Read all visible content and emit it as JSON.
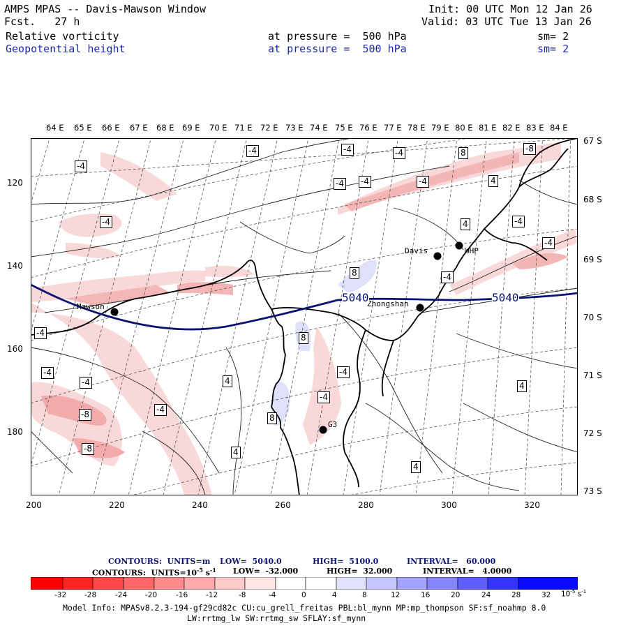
{
  "header": {
    "title": "AMPS MPAS -- Davis-Mawson Window",
    "forecast": "Fcst.   27 h",
    "init": "Init: 00 UTC Mon 12 Jan 26",
    "valid": "Valid: 03 UTC Tue 13 Jan 26",
    "field1": {
      "name": "Relative vorticity",
      "level": "at pressure =  500 hPa",
      "smooth": "sm= 2"
    },
    "field2": {
      "name": "Geopotential height",
      "level": "at pressure =  500 hPa",
      "smooth": "sm= 2"
    }
  },
  "map": {
    "x_ticks": [
      "200",
      "220",
      "240",
      "260",
      "280",
      "300",
      "320"
    ],
    "y_ticks": [
      "120",
      "140",
      "160",
      "180"
    ],
    "lon_labels": [
      "64 E",
      "65 E",
      "66 E",
      "67 E",
      "68 E",
      "69 E",
      "70 E",
      "71 E",
      "72 E",
      "73 E",
      "74 E",
      "75 E",
      "76 E",
      "77 E",
      "78 E",
      "79 E",
      "80 E",
      "81 E",
      "82 E",
      "83 E",
      "84 E"
    ],
    "lat_labels": [
      "67 S",
      "68 S",
      "69 S",
      "70 S",
      "71 S",
      "72 S",
      "73 S"
    ],
    "stations": [
      "Davis",
      "WHP",
      "Mawson",
      "Zhongshan",
      "G3"
    ],
    "height_contour_label": "5040",
    "vorticity_labels": [
      "-4",
      "4",
      "-8",
      "8"
    ],
    "colors": {
      "negative": "#f4a9a9",
      "positive": "#c9ccf4",
      "height": "#0a1470"
    }
  },
  "footer": {
    "height_line": {
      "contours": "CONTOURS:  UNITS=m",
      "low": "LOW=  5040.0",
      "high": "HIGH=  5100.0",
      "interval": "INTERVAL=   60.000"
    },
    "vort_line": {
      "contours": "CONTOURS:  UNITS=10",
      "exp": "-5",
      "unit": " s",
      "exp2": "-1",
      "low": "LOW=  -32.000",
      "high": "HIGH=  32.000",
      "interval": "INTERVAL=   4.0000"
    },
    "colorbar": {
      "ticks": [
        "-32",
        "-28",
        "-24",
        "-20",
        "-16",
        "-12",
        "-8",
        "-4",
        "0",
        "4",
        "8",
        "12",
        "16",
        "20",
        "24",
        "28",
        "32"
      ],
      "unit": "10",
      "unit_exp": "-5",
      "unit_s": "s",
      "unit_s_exp": "-1",
      "colors": [
        "#ff0000",
        "#ff3030",
        "#ff5c5c",
        "#ff7a7a",
        "#ff9999",
        "#ffb8b8",
        "#ffd4d4",
        "#ffeaea",
        "#ffffff",
        "#ffffff",
        "#e2e2ff",
        "#c4c4ff",
        "#a4a4ff",
        "#8484ff",
        "#5e5eff",
        "#3434ff",
        "#0a0aff"
      ]
    },
    "model_info": "Model Info: MPASv8.2.3-194-gf29cd82c CU:cu_grell_freitas PBL:bl_mynn MP:mp_thompson SF:sf_noahmp 8.0",
    "model_info2": "LW:rrtmg_lw SW:rrtmg_sw SFLAY:sf_mynn"
  }
}
